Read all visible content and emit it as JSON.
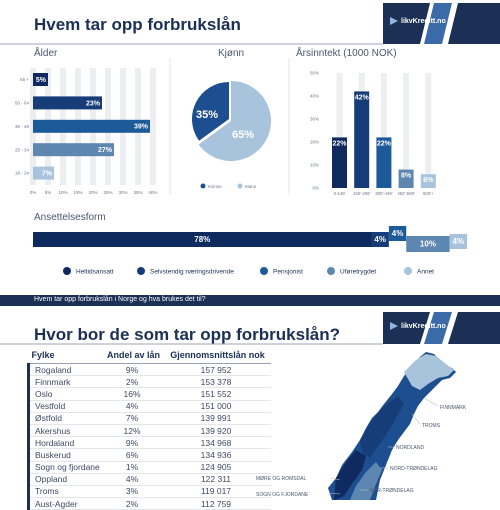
{
  "page": {
    "title": "Hvem tar opp forbrukslån",
    "logo_text": "likvKreditt.no",
    "banner_text": "Hvem tar opp forbrukslån i Norge og hva brukes det til?",
    "section2_title": "Hvor bor de som tar opp forbrukslån?"
  },
  "colors": {
    "navy": "#1c2f55",
    "dark": "#0f2a5e",
    "mid": "#1d4e8f",
    "steel": "#5d87b0",
    "light": "#a8c4dc",
    "grid": "#e3e5e8"
  },
  "chart_data": [
    {
      "type": "bar",
      "orientation": "horizontal",
      "title": "Ålder",
      "categories": [
        "65 +",
        "50 - 64",
        "35 - 49",
        "25 - 34",
        "18 - 24"
      ],
      "values": [
        5,
        23,
        39,
        27,
        7
      ],
      "value_labels": [
        "5%",
        "23%",
        "39%",
        "27%",
        "7%"
      ],
      "colors": [
        "#0f2a5e",
        "#163d78",
        "#1d5a99",
        "#5d87b0",
        "#a8c4dc"
      ],
      "xlim": [
        0,
        40
      ],
      "x_ticks": [
        "0%",
        "5%",
        "10%",
        "15%",
        "20%",
        "25%",
        "30%",
        "35%",
        "40%"
      ],
      "grid": true
    },
    {
      "type": "pie",
      "title": "Kjønn",
      "categories": [
        "Kvinne",
        "Mann"
      ],
      "values": [
        35,
        65
      ],
      "value_labels": [
        "35%",
        "65%"
      ],
      "colors": [
        "#1d4e8f",
        "#a8c4dc"
      ],
      "legend": "bottom"
    },
    {
      "type": "bar",
      "orientation": "vertical",
      "title": "Årsinntekt (1000 NOK)",
      "categories": [
        "0-149'",
        "150'-299'",
        "300'-449'",
        "450'-599'",
        "600'+"
      ],
      "values": [
        22,
        42,
        22,
        8,
        6
      ],
      "value_labels": [
        "22%",
        "42%",
        "22%",
        "8%",
        "6%"
      ],
      "colors": [
        "#0f2a5e",
        "#163d78",
        "#1d5a99",
        "#5d87b0",
        "#a8c4dc"
      ],
      "ylim": [
        0,
        50
      ],
      "y_ticks": [
        "0%",
        "10%",
        "20%",
        "30%",
        "40%",
        "50%"
      ],
      "grid": true
    },
    {
      "type": "bar",
      "orientation": "stacked-horizontal",
      "title": "Ansettelsesform",
      "categories": [
        "Heltidsansatt",
        "Selvstendig næringsdrivende",
        "Pensjonist",
        "Uføretrygdet",
        "Annet"
      ],
      "values": [
        78,
        4,
        4,
        10,
        4
      ],
      "value_labels": [
        "78%",
        "4%",
        "4%",
        "10%",
        "4%"
      ],
      "colors": [
        "#0f2a5e",
        "#163d78",
        "#1d5a99",
        "#5d87b0",
        "#a8c4dc"
      ],
      "legend": "bottom"
    }
  ],
  "region_table": {
    "headers": [
      "Fylke",
      "Andel av lån",
      "Gjennomsnittslån nok"
    ],
    "rows": [
      [
        "Rogaland",
        "9%",
        "157 952"
      ],
      [
        "Finnmark",
        "2%",
        "153 378"
      ],
      [
        "Oslo",
        "16%",
        "151 552"
      ],
      [
        "Vestfold",
        "4%",
        "151 000"
      ],
      [
        "Østfold",
        "7%",
        "139 991"
      ],
      [
        "Akershus",
        "12%",
        "139 920"
      ],
      [
        "Hordaland",
        "9%",
        "134 968"
      ],
      [
        "Buskerud",
        "6%",
        "134 936"
      ],
      [
        "Sogn og fjordane",
        "1%",
        "124 905"
      ],
      [
        "Oppland",
        "4%",
        "122 311"
      ],
      [
        "Troms",
        "3%",
        "119 017"
      ],
      [
        "Aust-Agder",
        "2%",
        "112 759"
      ]
    ]
  },
  "map": {
    "labels": [
      "FINNMARK",
      "TROMS",
      "NORDLAND",
      "NORD-TRØNDELAG",
      "MØRE OG ROMSDAL",
      "SØR-TRØNDELAG",
      "SOGN OG FJORDANE"
    ]
  }
}
